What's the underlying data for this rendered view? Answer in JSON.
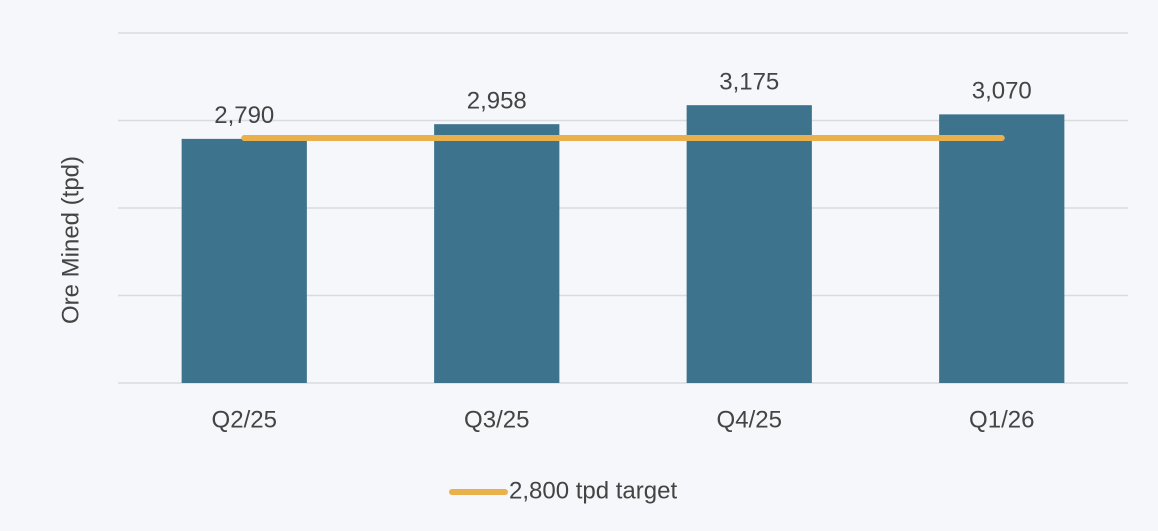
{
  "chart_data": {
    "type": "bar",
    "ylabel": "Ore Mined (tpd)",
    "categories": [
      "Q2/25",
      "Q3/25",
      "Q4/25",
      "Q1/26"
    ],
    "values": [
      2790,
      2958,
      3175,
      3070
    ],
    "value_labels": [
      "2,790",
      "2,958",
      "3,175",
      "3,070"
    ],
    "color": "#3d738d",
    "line_series": [
      {
        "name": "2,800 tpd target",
        "color": "#e9b04c",
        "values": [
          2800,
          2800,
          2800,
          2800
        ]
      }
    ],
    "ylim": [
      0,
      4000
    ],
    "yticks": [
      0,
      1000,
      2000,
      3000,
      4000
    ],
    "grid": true,
    "legend": "bottom"
  }
}
